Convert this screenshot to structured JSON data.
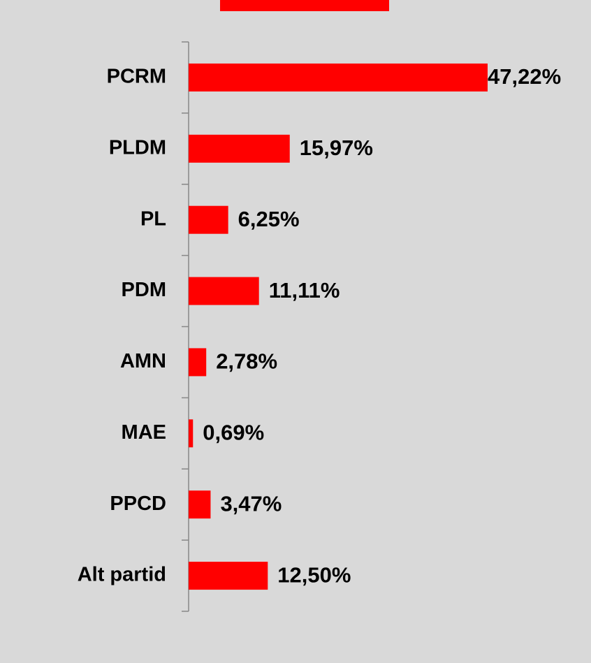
{
  "chart_data": {
    "type": "barh",
    "categories": [
      "PCRM",
      "PLDM",
      "PL",
      "PDM",
      "AMN",
      "MAE",
      "PPCD",
      "Alt partid"
    ],
    "values": [
      47.22,
      15.97,
      6.25,
      11.11,
      2.78,
      0.69,
      3.47,
      12.5
    ],
    "value_labels": [
      "47,22%",
      "15,97%",
      "6,25%",
      "11,11%",
      "2,78%",
      "0,69%",
      "3,47%",
      "12,50%"
    ],
    "color": "#ff0000"
  }
}
